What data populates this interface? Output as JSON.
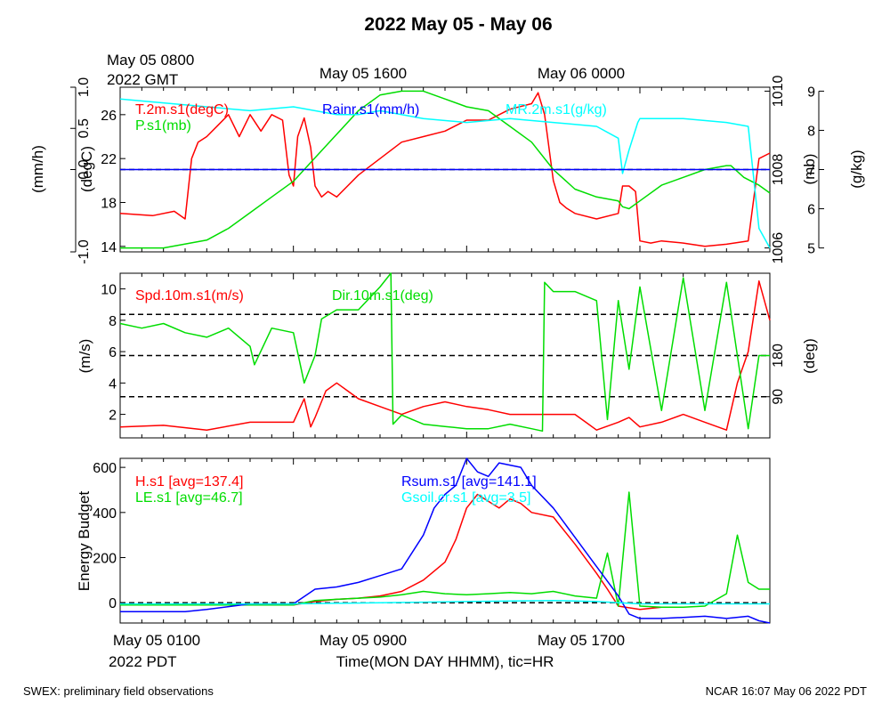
{
  "title": "2022 May 05 - May 06",
  "top_times": {
    "t1_line1": "May 05 0800",
    "t1_line2": "2022 GMT",
    "t2": "May 05 1600",
    "t3": "May 06 0000"
  },
  "bottom_times": {
    "t1": "May 05 0100",
    "t1_line2": "2022 PDT",
    "t2": "May 05 0900",
    "t3": "May 05 1700",
    "xlabel": "Time(MON DAY HHMM), tic=HR"
  },
  "footer": {
    "left": "SWEX: preliminary field observations",
    "right": "NCAR 16:07 May 06 2022 PDT"
  },
  "colors": {
    "red": "#ff0000",
    "green": "#00dd00",
    "blue": "#0000ff",
    "cyan": "#00ffff",
    "black": "#000000"
  },
  "chart_data": [
    {
      "type": "line",
      "panel": "top",
      "x_unit": "hours since May 05 0100 PDT",
      "xlim": [
        0,
        30
      ],
      "axes": [
        {
          "side": "left-outer",
          "label": "(mm/h)",
          "ylim": [
            -1.0,
            1.0
          ],
          "ticks": [
            -1.0,
            0.0,
            0.5,
            1.0
          ],
          "tick_labels": [
            "-1.0",
            "0.0",
            "0.5",
            "1.0"
          ]
        },
        {
          "side": "left-inner",
          "label": "(degC)",
          "ylim": [
            13.5,
            28.5
          ],
          "ticks": [
            14,
            18,
            22,
            26
          ],
          "tick_labels": [
            "14",
            "18",
            "22",
            "26"
          ]
        },
        {
          "side": "right-inner",
          "label": "(mb)",
          "ylim": [
            1005.9,
            1010.1
          ],
          "ticks": [
            1006,
            1008,
            1010
          ],
          "tick_labels": [
            "1006",
            "1008",
            "1010"
          ]
        },
        {
          "side": "right-outer",
          "label": "(g/kg)",
          "ylim": [
            4.9,
            9.1
          ],
          "ticks": [
            5,
            6,
            7,
            8,
            9
          ],
          "tick_labels": [
            "5",
            "6",
            "7",
            "8",
            "9"
          ]
        }
      ],
      "series": [
        {
          "name": "T.2m.s1(degC)",
          "color": "#ff0000",
          "axis": 1,
          "x": [
            0,
            1.5,
            2.5,
            3,
            3.3,
            3.6,
            4,
            4.5,
            5,
            5.5,
            6,
            6.5,
            7,
            7.5,
            7.8,
            8,
            8.2,
            8.5,
            8.8,
            9,
            9.3,
            9.6,
            10,
            10.5,
            11,
            12,
            13,
            14,
            15,
            16,
            17,
            18,
            19,
            19.3,
            19.6,
            20,
            20.3,
            20.6,
            21,
            22,
            23,
            23.2,
            23.5,
            23.8,
            24,
            24.5,
            25,
            26,
            27,
            28,
            29,
            29.5,
            30
          ],
          "y": [
            17,
            16.8,
            17.2,
            16.5,
            22,
            23.5,
            24,
            25,
            26,
            24,
            26,
            24.5,
            26,
            25.5,
            20.5,
            19.5,
            24,
            25.7,
            23,
            19.5,
            18.5,
            19,
            18.5,
            19.5,
            20.5,
            22,
            23.5,
            24,
            24.5,
            25.5,
            25.5,
            26.5,
            27,
            28,
            26,
            20,
            18,
            17.5,
            17,
            16.5,
            17,
            19.5,
            19.5,
            19,
            14.5,
            14.3,
            14.5,
            14.3,
            14,
            14.2,
            14.5,
            22,
            22.5
          ]
        },
        {
          "name": "P.s1(mb)",
          "color": "#00dd00",
          "axis": 2,
          "x": [
            0,
            2,
            4,
            5,
            6,
            7,
            8,
            9,
            10,
            11,
            12,
            13,
            14,
            14.5,
            15,
            16,
            17,
            18,
            19,
            20,
            21,
            22,
            23,
            23.2,
            23.5,
            24,
            25,
            26,
            27,
            28,
            28.2,
            28.8,
            29.5,
            30
          ],
          "y": [
            1006,
            1006,
            1006.2,
            1006.5,
            1006.9,
            1007.3,
            1007.7,
            1008.3,
            1008.9,
            1009.5,
            1009.9,
            1010,
            1010,
            1009.9,
            1009.8,
            1009.6,
            1009.5,
            1009.1,
            1008.7,
            1008.0,
            1007.5,
            1007.3,
            1007.2,
            1007.05,
            1007.0,
            1007.2,
            1007.6,
            1007.8,
            1008.0,
            1008.1,
            1008.1,
            1007.8,
            1007.6,
            1007.4
          ]
        },
        {
          "name": "MR.2m.s1(g/kg)",
          "color": "#00ffff",
          "axis": 3,
          "x": [
            0,
            2,
            4,
            6,
            8,
            10,
            11,
            12,
            13,
            14,
            16,
            18,
            20,
            22,
            23,
            23.2,
            23.5,
            23.9,
            24,
            26,
            28,
            29,
            29.5,
            30
          ],
          "y": [
            8.8,
            8.7,
            8.6,
            8.5,
            8.6,
            8.4,
            8.4,
            8.5,
            8.4,
            8.3,
            8.2,
            8.3,
            8.2,
            8.1,
            7.8,
            6.9,
            7.5,
            8.2,
            8.3,
            8.3,
            8.2,
            8.1,
            5.5,
            5.0
          ]
        },
        {
          "name": "Rainr.s1(mm/h)",
          "color": "#0000ff",
          "axis": 0,
          "x": [
            0,
            30
          ],
          "y": [
            0,
            0
          ]
        }
      ]
    },
    {
      "type": "line",
      "panel": "middle",
      "x_unit": "hours since May 05 0100 PDT",
      "xlim": [
        0,
        30
      ],
      "axes": [
        {
          "side": "left",
          "label": "(m/s)",
          "ylim": [
            0.5,
            11
          ],
          "ticks": [
            2,
            4,
            6,
            8,
            10
          ],
          "tick_labels": [
            "2",
            "4",
            "6",
            "8",
            "10"
          ]
        },
        {
          "side": "right",
          "label": "(deg)",
          "ylim": [
            0,
            360
          ],
          "ticks": [
            90,
            180
          ],
          "tick_labels": [
            "90",
            "180"
          ]
        }
      ],
      "reference_lines_deg": [
        90,
        180,
        270
      ],
      "series": [
        {
          "name": "Spd.10m.s1(m/s)",
          "color": "#ff0000",
          "axis": 0,
          "x": [
            0,
            2,
            4,
            6,
            8,
            8.5,
            8.8,
            9,
            9.5,
            10,
            10.5,
            11,
            12,
            13,
            14,
            15,
            16,
            17,
            18,
            19,
            20,
            21,
            21.5,
            22,
            23,
            23.5,
            24,
            25,
            26,
            27,
            28,
            28.5,
            29,
            29.5,
            30
          ],
          "y": [
            1.2,
            1.3,
            1.0,
            1.5,
            1.5,
            3.0,
            1.2,
            1.8,
            3.5,
            4.0,
            3.5,
            3.0,
            2.5,
            2.0,
            2.5,
            2.8,
            2.5,
            2.3,
            2.0,
            2.0,
            2.0,
            2.0,
            1.5,
            1.0,
            1.5,
            1.8,
            1.2,
            1.5,
            2.0,
            1.5,
            1.0,
            4.0,
            6.0,
            10.5,
            8.0
          ]
        },
        {
          "name": "Dir.10m.s1(deg)",
          "color": "#00dd00",
          "axis": 1,
          "x": [
            0,
            1,
            2,
            3,
            4,
            5,
            6,
            6.2,
            7,
            8,
            8.5,
            9,
            9.3,
            10,
            11,
            12,
            12.5,
            12.6,
            13,
            14,
            15,
            16,
            17,
            18,
            19,
            19.5,
            19.6,
            20,
            21,
            22,
            22.5,
            23,
            23.5,
            24,
            25,
            26,
            27,
            28,
            29,
            29.5,
            30
          ],
          "y": [
            250,
            240,
            250,
            230,
            220,
            240,
            200,
            160,
            240,
            230,
            120,
            180,
            260,
            280,
            280,
            330,
            360,
            30,
            50,
            30,
            25,
            20,
            20,
            30,
            20,
            15,
            340,
            320,
            320,
            300,
            40,
            300,
            150,
            330,
            60,
            350,
            60,
            340,
            20,
            180,
            180
          ]
        }
      ]
    },
    {
      "type": "line",
      "panel": "bottom",
      "x_unit": "hours since May 05 0100 PDT",
      "xlim": [
        0,
        30
      ],
      "ylabel": "Energy Budget",
      "ylim": [
        -90,
        640
      ],
      "ticks": [
        0,
        200,
        400,
        600
      ],
      "tick_labels": [
        "0",
        "200",
        "400",
        "600"
      ],
      "series": [
        {
          "name": "H.s1 [avg=137.4]",
          "color": "#ff0000",
          "x": [
            0,
            8,
            9,
            10,
            11,
            12,
            13,
            14,
            15,
            15.5,
            16,
            16.5,
            17,
            17.5,
            18,
            18.5,
            19,
            20,
            21,
            22,
            22.5,
            23,
            24,
            25
          ],
          "y": [
            -10,
            -10,
            5,
            15,
            20,
            30,
            50,
            100,
            180,
            280,
            420,
            480,
            450,
            420,
            460,
            440,
            400,
            380,
            260,
            130,
            60,
            -15,
            -30,
            -20
          ]
        },
        {
          "name": "LE.s1 [avg=46.7]",
          "color": "#00dd00",
          "x": [
            0,
            8,
            9,
            10,
            11,
            12,
            13,
            14,
            15,
            16,
            17,
            18,
            19,
            19.5,
            20,
            21,
            22,
            22.5,
            23,
            23.5,
            24,
            25,
            26,
            27,
            28,
            28.5,
            29,
            29.5,
            30
          ],
          "y": [
            -10,
            -10,
            10,
            15,
            20,
            25,
            35,
            50,
            40,
            35,
            40,
            45,
            40,
            45,
            50,
            30,
            20,
            220,
            -15,
            490,
            -15,
            -20,
            -20,
            -15,
            40,
            300,
            90,
            60,
            60
          ]
        },
        {
          "name": "Rsum.s1 [avg=141.1]",
          "color": "#0000ff",
          "x": [
            0,
            2,
            3,
            4,
            6,
            8,
            9,
            10,
            11,
            12,
            13,
            14,
            14.5,
            15,
            15.5,
            16,
            16.5,
            17,
            17.5,
            18,
            18.5,
            19,
            20,
            21,
            22,
            23,
            23.5,
            24,
            25,
            26,
            27,
            28,
            29,
            29.5,
            30
          ],
          "y": [
            -40,
            -40,
            -40,
            -30,
            -5,
            -5,
            60,
            70,
            90,
            120,
            150,
            300,
            420,
            480,
            520,
            640,
            580,
            560,
            620,
            610,
            600,
            520,
            420,
            290,
            160,
            30,
            -50,
            -70,
            -70,
            -65,
            -60,
            -70,
            -60,
            -80,
            -90
          ]
        },
        {
          "name": "Gsoil.cr.s1 [avg=3.5]",
          "color": "#00ffff",
          "x": [
            0,
            4,
            8,
            12,
            16,
            20,
            22,
            24,
            26,
            30
          ],
          "y": [
            -5,
            -5,
            -5,
            0,
            5,
            10,
            5,
            -5,
            -5,
            -5
          ]
        }
      ]
    }
  ]
}
